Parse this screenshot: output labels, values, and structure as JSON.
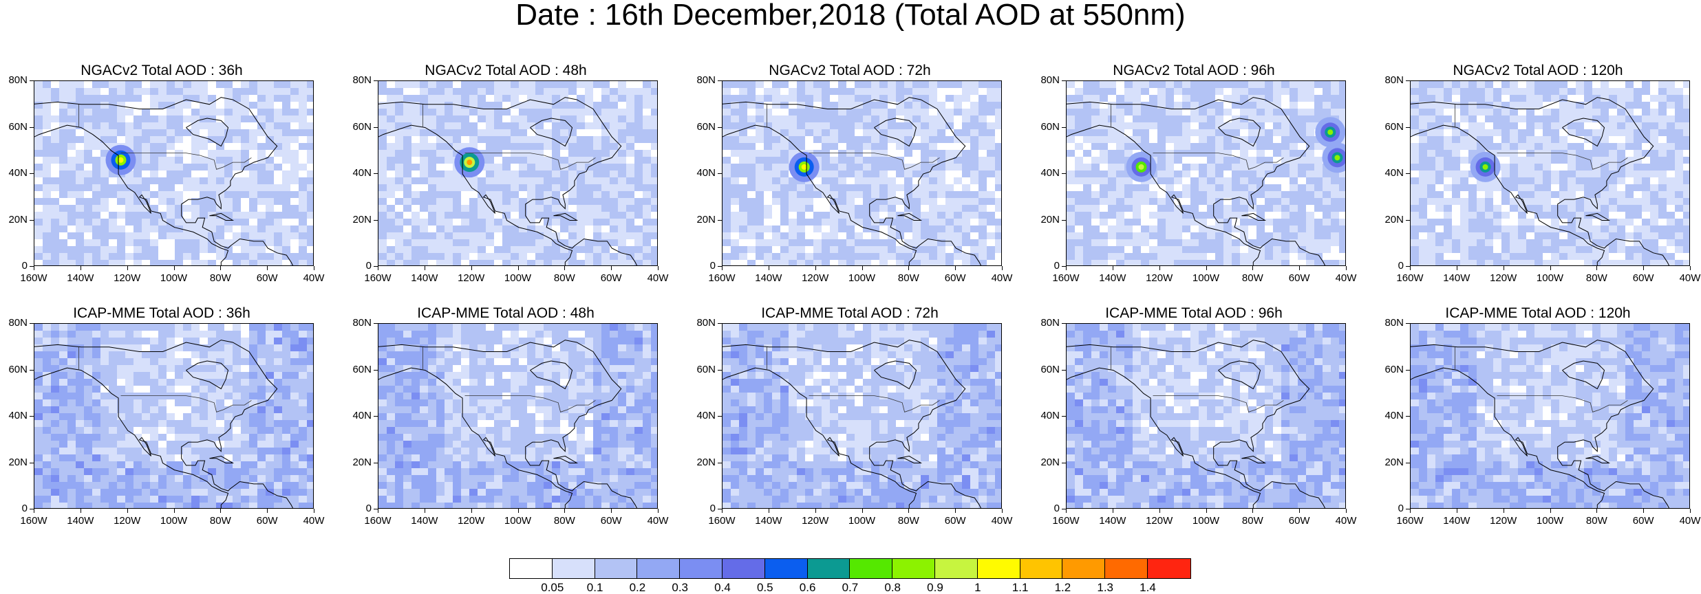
{
  "title": "Date : 16th December,2018 (Total AOD at 550nm)",
  "panels": [
    {
      "label": "NGACv2 Total AOD : 36h",
      "model": "NGACv2",
      "lead": "36h",
      "hotspots": [
        {
          "lon": -123,
          "lat": 46,
          "aod": 1.0
        }
      ],
      "background_aod": 0.1
    },
    {
      "label": "NGACv2 Total AOD : 48h",
      "model": "NGACv2",
      "lead": "48h",
      "hotspots": [
        {
          "lon": -121,
          "lat": 45,
          "aod": 1.2
        }
      ],
      "background_aod": 0.1
    },
    {
      "label": "NGACv2 Total AOD : 72h",
      "model": "NGACv2",
      "lead": "72h",
      "hotspots": [
        {
          "lon": -125,
          "lat": 43,
          "aod": 1.0
        }
      ],
      "background_aod": 0.1
    },
    {
      "label": "NGACv2 Total AOD : 96h",
      "model": "NGACv2",
      "lead": "96h",
      "hotspots": [
        {
          "lon": -128,
          "lat": 43,
          "aod": 0.9
        },
        {
          "lon": -47,
          "lat": 58,
          "aod": 0.8
        },
        {
          "lon": -44,
          "lat": 47,
          "aod": 0.8
        }
      ],
      "background_aod": 0.1
    },
    {
      "label": "NGACv2 Total AOD : 120h",
      "model": "NGACv2",
      "lead": "120h",
      "hotspots": [
        {
          "lon": -128,
          "lat": 43,
          "aod": 0.8
        }
      ],
      "background_aod": 0.1
    },
    {
      "label": "ICAP-MME Total AOD : 36h",
      "model": "ICAP-MME",
      "lead": "36h",
      "hotspots": [],
      "background_aod": 0.2
    },
    {
      "label": "ICAP-MME Total AOD : 48h",
      "model": "ICAP-MME",
      "lead": "48h",
      "hotspots": [],
      "background_aod": 0.2
    },
    {
      "label": "ICAP-MME Total AOD : 72h",
      "model": "ICAP-MME",
      "lead": "72h",
      "hotspots": [],
      "background_aod": 0.2
    },
    {
      "label": "ICAP-MME Total AOD : 96h",
      "model": "ICAP-MME",
      "lead": "96h",
      "hotspots": [],
      "background_aod": 0.2
    },
    {
      "label": "ICAP-MME Total AOD : 120h",
      "model": "ICAP-MME",
      "lead": "120h",
      "hotspots": [],
      "background_aod": 0.2
    }
  ],
  "axes": {
    "lat_labels": [
      "80N",
      "60N",
      "40N",
      "20N",
      "0"
    ],
    "lat_values": [
      80,
      60,
      40,
      20,
      0
    ],
    "lon_labels": [
      "160W",
      "140W",
      "120W",
      "100W",
      "80W",
      "60W",
      "40W"
    ],
    "lon_values": [
      -160,
      -140,
      -120,
      -100,
      -80,
      -60,
      -40
    ],
    "lon_range": [
      -160,
      -40
    ],
    "lat_range": [
      0,
      80
    ]
  },
  "colorbar": {
    "colors": [
      "#ffffff",
      "#d7e0fb",
      "#b3c3f5",
      "#93a8f4",
      "#7b8ef2",
      "#646ce8",
      "#0b5eef",
      "#0c9a92",
      "#55e800",
      "#8cf200",
      "#c7f53f",
      "#fffb00",
      "#ffc400",
      "#ff9a00",
      "#ff6a00",
      "#ff2510"
    ],
    "labels": [
      "0.05",
      "0.1",
      "0.2",
      "0.3",
      "0.4",
      "0.5",
      "0.6",
      "0.7",
      "0.8",
      "0.9",
      "1",
      "1.1",
      "1.2",
      "1.3",
      "1.4"
    ]
  }
}
